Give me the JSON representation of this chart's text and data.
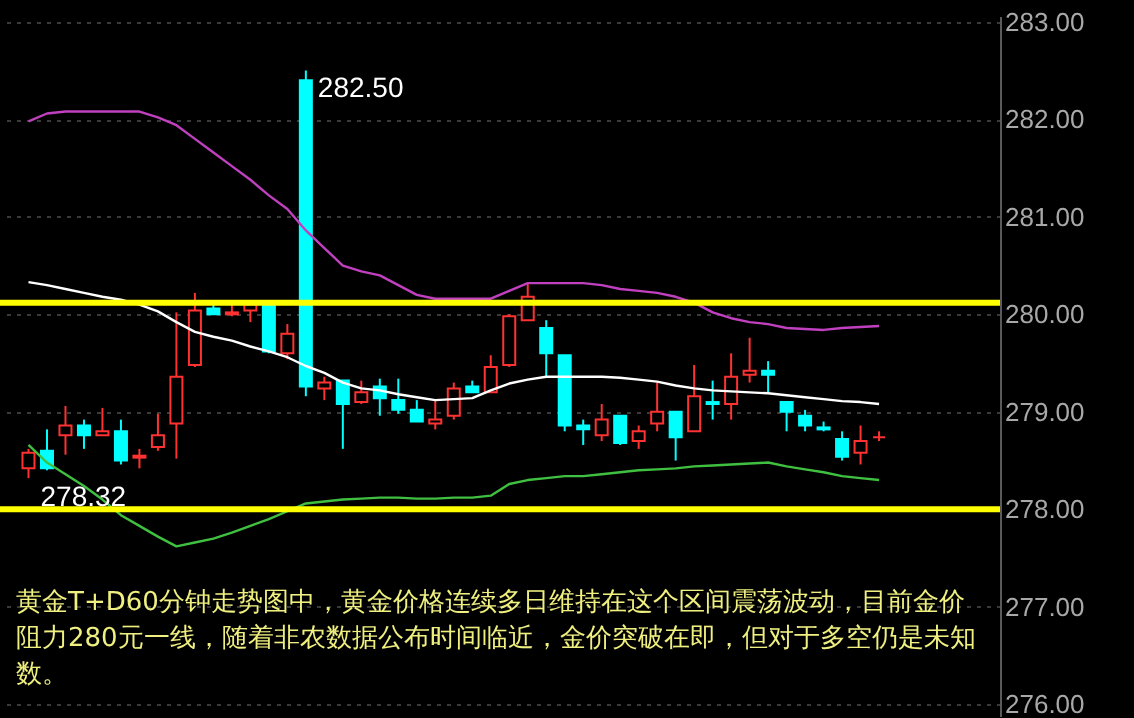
{
  "chart_data": {
    "type": "candlestick",
    "categories": [
      null,
      null,
      null,
      null,
      null,
      null,
      null,
      null,
      null,
      null,
      null,
      null,
      null,
      null,
      null,
      null,
      null,
      null,
      null,
      null,
      null,
      null,
      null,
      null,
      null,
      null,
      null,
      null,
      null,
      null,
      null,
      null,
      null,
      null,
      null,
      null,
      null,
      null,
      null,
      null,
      null,
      null,
      null,
      null,
      null,
      null,
      null
    ],
    "ohlc": [
      [
        278.42,
        278.62,
        278.32,
        278.58
      ],
      [
        278.6,
        278.82,
        278.4,
        278.42
      ],
      [
        278.76,
        279.06,
        278.56,
        278.86
      ],
      [
        278.86,
        278.92,
        278.62,
        278.76
      ],
      [
        278.76,
        279.04,
        278.76,
        278.8
      ],
      [
        278.8,
        278.92,
        278.46,
        278.5
      ],
      [
        278.53,
        278.62,
        278.42,
        278.55
      ],
      [
        278.64,
        278.98,
        278.6,
        278.76
      ],
      [
        278.88,
        280.02,
        278.52,
        279.36
      ],
      [
        279.48,
        280.22,
        279.46,
        280.04
      ],
      [
        280.06,
        280.12,
        280.0,
        280.0
      ],
      [
        280.0,
        280.12,
        279.98,
        280.02
      ],
      [
        280.04,
        280.12,
        279.92,
        280.1
      ],
      [
        280.12,
        280.12,
        279.6,
        279.62
      ],
      [
        279.6,
        279.9,
        279.54,
        279.8
      ],
      [
        282.4,
        282.5,
        279.16,
        279.26
      ],
      [
        279.24,
        279.36,
        279.12,
        279.3
      ],
      [
        279.32,
        279.32,
        278.62,
        279.08
      ],
      [
        279.1,
        279.32,
        279.08,
        279.2
      ],
      [
        279.26,
        279.34,
        278.96,
        279.14
      ],
      [
        279.12,
        279.34,
        278.98,
        279.02
      ],
      [
        279.02,
        279.12,
        278.9,
        278.9
      ],
      [
        278.88,
        279.12,
        278.82,
        278.92
      ],
      [
        278.96,
        279.3,
        278.92,
        279.24
      ],
      [
        279.26,
        279.32,
        279.2,
        279.2
      ],
      [
        279.2,
        279.58,
        279.2,
        279.46
      ],
      [
        279.48,
        280.0,
        279.46,
        279.98
      ],
      [
        279.94,
        280.32,
        279.94,
        280.18
      ],
      [
        279.86,
        279.94,
        279.36,
        279.6
      ],
      [
        279.58,
        279.58,
        278.8,
        278.86
      ],
      [
        278.86,
        278.92,
        278.66,
        278.82
      ],
      [
        278.76,
        279.08,
        278.7,
        278.92
      ],
      [
        278.96,
        278.96,
        278.66,
        278.68
      ],
      [
        278.7,
        278.86,
        278.62,
        278.8
      ],
      [
        278.88,
        279.3,
        278.8,
        279.0
      ],
      [
        279.0,
        279.0,
        278.5,
        278.74
      ],
      [
        278.8,
        279.48,
        278.8,
        279.16
      ],
      [
        279.1,
        279.32,
        278.92,
        279.08
      ],
      [
        279.08,
        279.6,
        278.92,
        279.36
      ],
      [
        279.38,
        279.76,
        279.3,
        279.42
      ],
      [
        279.42,
        279.52,
        279.2,
        279.38
      ],
      [
        279.1,
        279.1,
        278.8,
        279.0
      ],
      [
        278.96,
        279.02,
        278.8,
        278.86
      ],
      [
        278.84,
        278.9,
        278.8,
        278.82
      ],
      [
        278.72,
        278.8,
        278.5,
        278.54
      ],
      [
        278.58,
        278.86,
        278.46,
        278.7
      ],
      [
        278.74,
        278.8,
        278.7,
        278.74
      ]
    ],
    "colors": [
      "#ff3232",
      "#00ffff",
      "#ff3232",
      "#00ffff",
      "#ff3232",
      "#00ffff",
      "#ff3232",
      "#ff3232",
      "#ff3232",
      "#ff3232",
      "#00ffff",
      "#ff3232",
      "#ff3232",
      "#00ffff",
      "#ff3232",
      "#00ffff",
      "#ff3232",
      "#00ffff",
      "#ff3232",
      "#00ffff",
      "#00ffff",
      "#00ffff",
      "#ff3232",
      "#ff3232",
      "#00ffff",
      "#ff3232",
      "#ff3232",
      "#ff3232",
      "#00ffff",
      "#00ffff",
      "#00ffff",
      "#ff3232",
      "#00ffff",
      "#ff3232",
      "#ff3232",
      "#00ffff",
      "#ff3232",
      "#00ffff",
      "#ff3232",
      "#ff3232",
      "#00ffff",
      "#00ffff",
      "#00ffff",
      "#00ffff",
      "#00ffff",
      "#ff3232",
      "#ff3232"
    ],
    "series": [
      {
        "type": "line",
        "color": "#c040c0",
        "values": [
          281.98,
          282.06,
          282.08,
          282.08,
          282.08,
          282.08,
          282.08,
          282.02,
          281.94,
          281.8,
          281.66,
          281.52,
          281.38,
          281.22,
          281.08,
          280.86,
          280.68,
          280.5,
          280.44,
          280.4,
          280.3,
          280.2,
          280.16,
          280.16,
          280.16,
          280.16,
          280.24,
          280.32,
          280.32,
          280.32,
          280.32,
          280.3,
          280.26,
          280.24,
          280.22,
          280.18,
          280.12,
          280.02,
          279.96,
          279.92,
          279.9,
          279.86,
          279.85,
          279.84,
          279.86,
          279.87,
          279.88
        ]
      },
      {
        "type": "line",
        "color": "#ffffff",
        "values": [
          280.33,
          280.3,
          280.26,
          280.22,
          280.18,
          280.15,
          280.1,
          280.03,
          279.92,
          279.82,
          279.77,
          279.73,
          279.67,
          279.62,
          279.56,
          279.47,
          279.4,
          279.3,
          279.24,
          279.22,
          279.18,
          279.15,
          279.12,
          279.13,
          279.14,
          279.22,
          279.29,
          279.33,
          279.36,
          279.36,
          279.36,
          279.36,
          279.35,
          279.33,
          279.31,
          279.27,
          279.24,
          279.22,
          279.21,
          279.2,
          279.19,
          279.17,
          279.15,
          279.13,
          279.11,
          279.1,
          279.08
        ]
      },
      {
        "type": "line",
        "color": "#40c040",
        "values": [
          278.66,
          278.48,
          278.36,
          278.24,
          278.1,
          277.94,
          277.83,
          277.72,
          277.62,
          277.66,
          277.7,
          277.76,
          277.83,
          277.9,
          277.98,
          278.06,
          278.08,
          278.1,
          278.11,
          278.12,
          278.12,
          278.11,
          278.11,
          278.12,
          278.12,
          278.14,
          278.26,
          278.3,
          278.32,
          278.34,
          278.34,
          278.36,
          278.38,
          278.4,
          278.41,
          278.42,
          278.44,
          278.45,
          278.46,
          278.47,
          278.48,
          278.44,
          278.41,
          278.38,
          278.34,
          278.32,
          278.3
        ]
      }
    ],
    "ylim": [
      275.88,
      283.06
    ],
    "yticks": [
      {
        "value": 276,
        "label": "276.00"
      },
      {
        "value": 277,
        "label": "277.00"
      },
      {
        "value": 278,
        "label": "278.00"
      },
      {
        "value": 279,
        "label": "279.00"
      },
      {
        "value": 280,
        "label": "280.00"
      },
      {
        "value": 281,
        "label": "281.00"
      },
      {
        "value": 282,
        "label": "282.00"
      },
      {
        "value": 283,
        "label": "283.00"
      }
    ],
    "ref_lines": [
      {
        "axis": "y",
        "value": 280.12,
        "color": "#ffff00"
      },
      {
        "axis": "y",
        "value": 278.0,
        "color": "#ffff00"
      }
    ],
    "annotations": [
      "282.50",
      "278.32",
      "黄金T+D60分钟走势图中，黄金价格连续多日维持在这个区间震荡波动，目前金价阻力280元一线，随着非农数据公布时间临近，金价突破在即，但对于多空仍是未知数。"
    ],
    "grid": "y",
    "tick_labels": "y"
  }
}
